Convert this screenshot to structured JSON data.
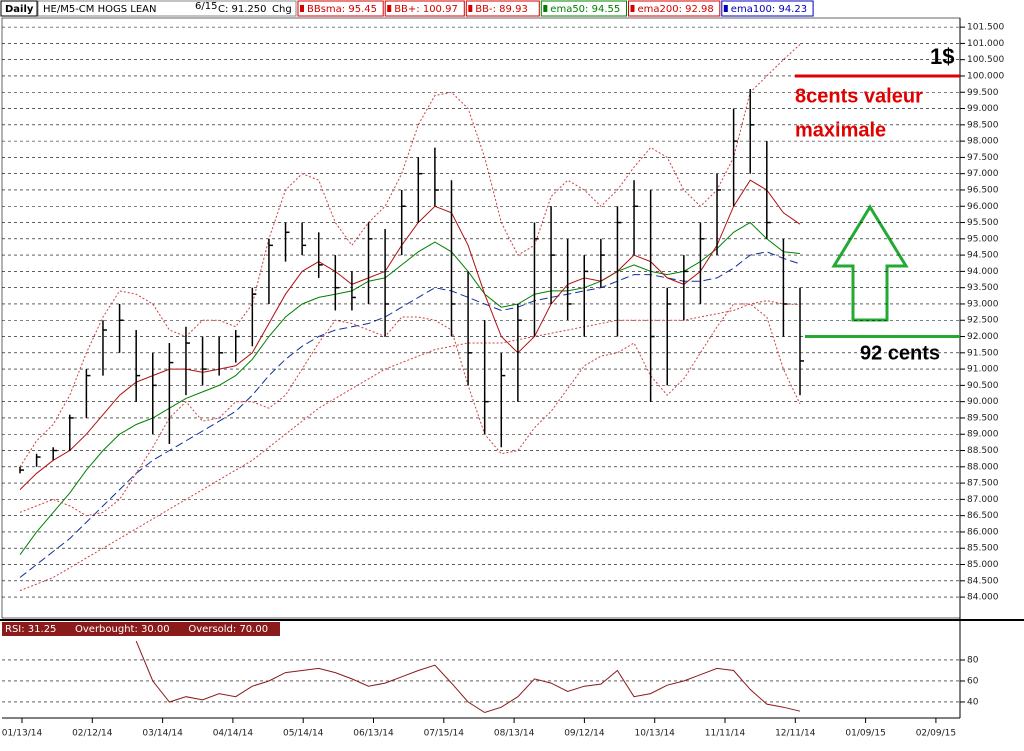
{
  "header": {
    "period": "Daily",
    "symbol": "HE/M5-CM HOGS LEAN",
    "date": "6/15",
    "close": "C: 91.250",
    "change": "Chg",
    "indicators": [
      {
        "text": "BBsma: 95.45",
        "color": "#d40000"
      },
      {
        "text": "BB+: 100.97",
        "color": "#d40000"
      },
      {
        "text": "BB-: 89.93",
        "color": "#d40000"
      },
      {
        "text": "ema50: 94.55",
        "color": "#008000"
      },
      {
        "text": "ema200: 92.98",
        "color": "#d40000"
      },
      {
        "text": "ema100: 94.23",
        "color": "#0000c0"
      }
    ]
  },
  "x_labels": [
    "01/13/14",
    "02/12/14",
    "03/14/14",
    "04/14/14",
    "05/14/14",
    "06/13/14",
    "07/15/14",
    "08/13/14",
    "09/12/14",
    "10/13/14",
    "11/11/14",
    "12/11/14",
    "01/09/15",
    "02/09/15"
  ],
  "chart_data": [
    {
      "type": "ohlc",
      "color": "#000000",
      "ylim": [
        83.45,
        101.78
      ],
      "yticks": [
        {
          "value": 84,
          "label": "84.000"
        },
        {
          "value": 84.5,
          "label": "84.500"
        },
        {
          "value": 85,
          "label": "85.000"
        },
        {
          "value": 85.5,
          "label": "85.500"
        },
        {
          "value": 86,
          "label": "86.000"
        },
        {
          "value": 86.5,
          "label": "86.500"
        },
        {
          "value": 87,
          "label": "87.000"
        },
        {
          "value": 87.5,
          "label": "87.500"
        },
        {
          "value": 88,
          "label": "88.000"
        },
        {
          "value": 88.5,
          "label": "88.500"
        },
        {
          "value": 89,
          "label": "89.000"
        },
        {
          "value": 89.5,
          "label": "89.500"
        },
        {
          "value": 90,
          "label": "90.000"
        },
        {
          "value": 90.5,
          "label": "90.500"
        },
        {
          "value": 91,
          "label": "91.000"
        },
        {
          "value": 91.5,
          "label": "91.500"
        },
        {
          "value": 92,
          "label": "92.000"
        },
        {
          "value": 92.5,
          "label": "92.500"
        },
        {
          "value": 93,
          "label": "93.000"
        },
        {
          "value": 93.5,
          "label": "93.500"
        },
        {
          "value": 94,
          "label": "94.000"
        },
        {
          "value": 94.5,
          "label": "94.500"
        },
        {
          "value": 95,
          "label": "95.000"
        },
        {
          "value": 95.5,
          "label": "95.500"
        },
        {
          "value": 96,
          "label": "96.000"
        },
        {
          "value": 96.5,
          "label": "96.500"
        },
        {
          "value": 97,
          "label": "97.000"
        },
        {
          "value": 97.5,
          "label": "97.500"
        },
        {
          "value": 98,
          "label": "98.000"
        },
        {
          "value": 98.5,
          "label": "98.500"
        },
        {
          "value": 99,
          "label": "99.000"
        },
        {
          "value": 99.5,
          "label": "99.500"
        },
        {
          "value": 100,
          "label": "100.000"
        },
        {
          "value": 100.5,
          "label": "100.500"
        },
        {
          "value": 101,
          "label": "101.000"
        },
        {
          "value": 101.5,
          "label": "101.500"
        }
      ],
      "grid": true,
      "high": [
        88.0,
        88.4,
        88.6,
        89.6,
        91.0,
        92.5,
        93.0,
        92.2,
        91.5,
        91.8,
        92.3,
        92.0,
        92.0,
        92.2,
        93.5,
        95.0,
        95.5,
        95.5,
        95.2,
        94.5,
        94.0,
        95.5,
        95.3,
        96.5,
        97.5,
        97.8,
        96.8,
        94.0,
        92.5,
        91.5,
        93.0,
        95.5,
        96.0,
        95.0,
        94.5,
        95.0,
        96.0,
        96.8,
        96.5,
        93.5,
        94.5,
        95.5,
        97.0,
        99.0,
        99.6,
        98.0,
        95.0,
        93.5
      ],
      "low": [
        87.8,
        88.0,
        88.2,
        88.5,
        89.5,
        90.8,
        91.5,
        90.0,
        89.0,
        88.7,
        90.2,
        90.5,
        90.8,
        91.2,
        91.7,
        93.0,
        94.3,
        94.5,
        93.8,
        92.8,
        92.8,
        93.0,
        92.0,
        94.5,
        95.5,
        96.0,
        92.0,
        90.5,
        89.0,
        88.6,
        90.0,
        92.0,
        93.0,
        92.5,
        92.0,
        93.5,
        92.0,
        94.5,
        90.0,
        90.5,
        92.5,
        93.0,
        94.5,
        96.0,
        97.0,
        95.0,
        92.0,
        90.2
      ],
      "close": [
        87.9,
        88.3,
        88.5,
        89.5,
        90.8,
        92.2,
        92.5,
        90.8,
        90.5,
        91.2,
        91.8,
        91.0,
        91.5,
        92.0,
        93.3,
        94.8,
        95.2,
        94.8,
        94.2,
        93.5,
        93.2,
        95.0,
        93.0,
        96.0,
        97.0,
        96.5,
        93.0,
        91.5,
        90.0,
        90.8,
        92.5,
        95.0,
        94.5,
        93.0,
        94.0,
        94.5,
        95.5,
        96.0,
        92.0,
        93.0,
        94.0,
        95.0,
        96.5,
        98.0,
        98.5,
        95.5,
        93.0,
        91.25
      ],
      "series": [
        {
          "color": "#008000",
          "dash": "none",
          "values": [
            85.3,
            86.0,
            86.6,
            87.2,
            87.9,
            88.5,
            89.0,
            89.3,
            89.5,
            89.8,
            90.1,
            90.3,
            90.5,
            90.8,
            91.3,
            92.0,
            92.6,
            93.0,
            93.2,
            93.3,
            93.4,
            93.7,
            93.8,
            94.2,
            94.6,
            94.9,
            94.6,
            94.0,
            93.3,
            92.9,
            93.0,
            93.3,
            93.4,
            93.4,
            93.5,
            93.7,
            94.0,
            94.2,
            94.0,
            93.9,
            94.0,
            94.3,
            94.7,
            95.2,
            95.5,
            95.0,
            94.6,
            94.55
          ]
        },
        {
          "color": "#1030a0",
          "dash": "8 4",
          "values": [
            84.6,
            85.0,
            85.4,
            85.8,
            86.3,
            86.8,
            87.3,
            87.8,
            88.2,
            88.5,
            88.8,
            89.1,
            89.4,
            89.7,
            90.2,
            90.8,
            91.3,
            91.7,
            92.0,
            92.2,
            92.3,
            92.4,
            92.6,
            92.9,
            93.2,
            93.5,
            93.4,
            93.2,
            93.0,
            92.8,
            92.9,
            93.1,
            93.2,
            93.3,
            93.4,
            93.5,
            93.7,
            93.9,
            93.9,
            93.8,
            93.7,
            93.7,
            93.8,
            94.1,
            94.5,
            94.6,
            94.4,
            94.23
          ]
        },
        {
          "color": "#d04040",
          "dash": "2 2",
          "values": [
            84.2,
            84.4,
            84.6,
            84.9,
            85.2,
            85.5,
            85.8,
            86.1,
            86.4,
            86.7,
            87.0,
            87.3,
            87.6,
            87.9,
            88.2,
            88.6,
            89.0,
            89.4,
            89.8,
            90.1,
            90.4,
            90.7,
            91.0,
            91.2,
            91.4,
            91.6,
            91.7,
            91.8,
            91.8,
            91.8,
            91.9,
            92.0,
            92.1,
            92.2,
            92.3,
            92.4,
            92.5,
            92.5,
            92.5,
            92.5,
            92.5,
            92.6,
            92.7,
            92.8,
            93.0,
            93.1,
            93.0,
            92.98
          ]
        },
        {
          "color": "#b01010",
          "dash": "none",
          "values": [
            87.3,
            87.8,
            88.2,
            88.5,
            89.0,
            89.6,
            90.2,
            90.6,
            90.8,
            91.0,
            91.0,
            90.9,
            91.0,
            91.1,
            91.5,
            92.4,
            93.3,
            94.0,
            94.3,
            94.0,
            93.6,
            93.8,
            94.0,
            94.8,
            95.5,
            96.0,
            95.8,
            94.8,
            93.3,
            92.0,
            91.5,
            92.0,
            93.0,
            93.6,
            93.8,
            93.7,
            94.0,
            94.5,
            94.3,
            93.8,
            93.6,
            94.0,
            94.8,
            96.0,
            96.8,
            96.5,
            95.8,
            95.45
          ]
        },
        {
          "color": "#d04040",
          "dash": "2 2",
          "values": [
            88.0,
            88.8,
            89.3,
            90.2,
            91.5,
            92.6,
            93.4,
            93.3,
            93.0,
            92.2,
            92.0,
            92.5,
            92.5,
            92.3,
            93.0,
            95.0,
            96.5,
            97.0,
            96.8,
            95.5,
            94.8,
            95.5,
            96.0,
            97.0,
            98.5,
            99.4,
            99.5,
            99.0,
            97.5,
            95.5,
            94.5,
            94.8,
            96.3,
            96.8,
            96.5,
            96.0,
            96.5,
            97.2,
            97.8,
            97.5,
            96.5,
            96.0,
            96.5,
            97.5,
            99.5,
            100.0,
            100.5,
            100.97
          ]
        },
        {
          "color": "#d04040",
          "dash": "2 2",
          "values": [
            86.6,
            86.8,
            87.0,
            86.8,
            86.5,
            86.6,
            87.0,
            87.8,
            88.6,
            89.5,
            90.0,
            89.4,
            89.5,
            90.0,
            90.0,
            89.8,
            90.2,
            91.0,
            91.8,
            92.5,
            92.4,
            92.2,
            92.0,
            92.6,
            92.6,
            92.5,
            92.2,
            90.5,
            89.0,
            88.4,
            88.5,
            89.2,
            89.7,
            90.4,
            91.1,
            91.4,
            91.5,
            91.8,
            90.8,
            90.2,
            90.7,
            91.5,
            92.3,
            93.0,
            93.0,
            92.6,
            91.0,
            89.93
          ]
        }
      ],
      "reference_lines": [
        {
          "value": 100,
          "color": "#e00000"
        },
        {
          "value": 92,
          "color": "#22aa33"
        }
      ],
      "annotations": [
        "1$",
        "8cents valeur",
        "maximale",
        "92 cents"
      ]
    },
    {
      "type": "line",
      "color": "#8b1a1a",
      "legend": [
        "RSI: 31.25",
        "Overbought: 30.00",
        "Oversold: 70.00"
      ],
      "ylim": [
        27.6,
        103.8
      ],
      "yticks": [
        40,
        60,
        80
      ],
      "grid": true,
      "values": [
        null,
        null,
        null,
        null,
        null,
        null,
        null,
        98,
        60,
        40,
        45,
        42,
        48,
        45,
        55,
        60,
        68,
        70,
        72,
        68,
        62,
        55,
        58,
        64,
        70,
        75,
        58,
        40,
        30,
        35,
        45,
        62,
        58,
        50,
        55,
        57,
        70,
        45,
        48,
        56,
        60,
        66,
        72,
        70,
        52,
        38,
        35,
        31.25
      ]
    }
  ]
}
